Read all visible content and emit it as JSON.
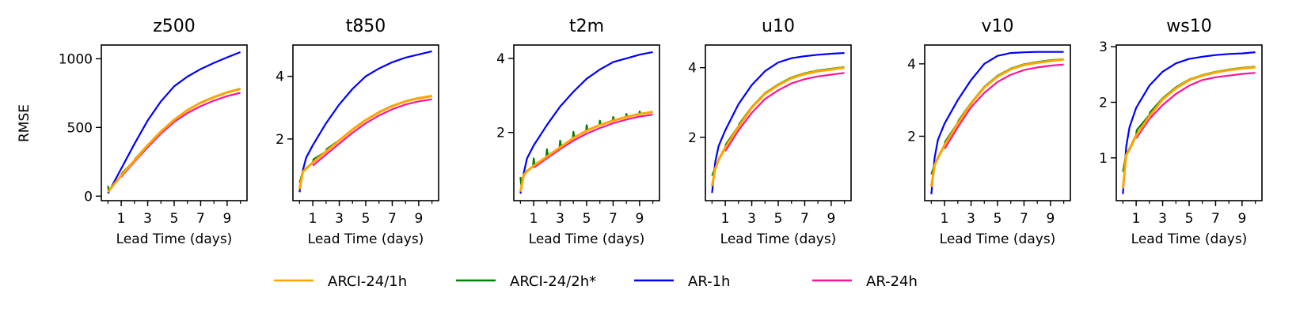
{
  "chart_data": [
    {
      "type": "line",
      "title": "z500",
      "xlabel": "Lead Time (days)",
      "ylabel": "RMSE",
      "xlim": [
        -0.5,
        10.5
      ],
      "ylim": [
        -33,
        1100
      ],
      "xticks": [
        1,
        3,
        5,
        7,
        9
      ],
      "xminor": [
        0,
        1,
        2,
        3,
        4,
        5,
        6,
        7,
        8,
        9,
        10
      ],
      "yticks": [
        0,
        500,
        1000
      ],
      "series": [
        {
          "name": "ARCI-24/1h",
          "x": [
            0,
            0.25,
            0.5,
            1,
            2,
            3,
            4,
            5,
            6,
            7,
            8,
            9,
            10
          ],
          "y": [
            30,
            60,
            90,
            150,
            260,
            370,
            470,
            555,
            625,
            680,
            720,
            755,
            780
          ]
        },
        {
          "name": "ARCI-24/2h*",
          "x": [
            0,
            0.05,
            0.25,
            0.5,
            1,
            1.05,
            2,
            2.05,
            3,
            4,
            5,
            6,
            7,
            8,
            9,
            10
          ],
          "y": [
            75,
            40,
            62,
            92,
            150,
            165,
            260,
            272,
            372,
            472,
            557,
            627,
            682,
            722,
            757,
            782
          ]
        },
        {
          "name": "AR-1h",
          "x": [
            0,
            1,
            2,
            3,
            4,
            5,
            6,
            7,
            8,
            9,
            10
          ],
          "y": [
            20,
            200,
            380,
            550,
            690,
            800,
            870,
            925,
            970,
            1010,
            1048
          ]
        },
        {
          "name": "AR-24h",
          "x": [
            1,
            2,
            3,
            4,
            5,
            6,
            7,
            8,
            9,
            10
          ],
          "y": [
            140,
            250,
            355,
            455,
            540,
            605,
            655,
            695,
            728,
            752
          ]
        }
      ]
    },
    {
      "type": "line",
      "title": "t850",
      "xlabel": "Lead Time (days)",
      "xlim": [
        -0.5,
        10.5
      ],
      "ylim": [
        0.03,
        5.0
      ],
      "xticks": [
        1,
        3,
        5,
        7,
        9
      ],
      "xminor": [
        0,
        1,
        2,
        3,
        4,
        5,
        6,
        7,
        8,
        9,
        10
      ],
      "yticks": [
        2,
        4
      ],
      "series": [
        {
          "name": "ARCI-24/1h",
          "x": [
            0,
            0.25,
            0.5,
            1,
            2,
            3,
            4,
            5,
            6,
            7,
            8,
            9,
            10
          ],
          "y": [
            0.4,
            0.95,
            1.05,
            1.25,
            1.6,
            1.95,
            2.3,
            2.6,
            2.85,
            3.05,
            3.2,
            3.3,
            3.37
          ]
        },
        {
          "name": "ARCI-24/2h*",
          "x": [
            0,
            0.25,
            0.5,
            1,
            1.05,
            2,
            2.05,
            3,
            4,
            5,
            6,
            7,
            8,
            9,
            10
          ],
          "y": [
            0.6,
            0.97,
            1.07,
            1.25,
            1.35,
            1.6,
            1.68,
            1.96,
            2.31,
            2.61,
            2.86,
            3.06,
            3.21,
            3.31,
            3.38
          ]
        },
        {
          "name": "AR-1h",
          "x": [
            0,
            0.25,
            0.5,
            1,
            2,
            3,
            4,
            5,
            6,
            7,
            8,
            9,
            10
          ],
          "y": [
            0.3,
            1.0,
            1.4,
            1.8,
            2.5,
            3.1,
            3.6,
            4.0,
            4.25,
            4.45,
            4.6,
            4.7,
            4.8
          ]
        },
        {
          "name": "AR-24h",
          "x": [
            1,
            2,
            3,
            4,
            5,
            6,
            7,
            8,
            9,
            10
          ],
          "y": [
            1.15,
            1.5,
            1.85,
            2.2,
            2.5,
            2.75,
            2.95,
            3.1,
            3.2,
            3.27
          ]
        }
      ]
    },
    {
      "type": "line",
      "title": "t2m",
      "xlabel": "Lead Time (days)",
      "xlim": [
        -0.5,
        10.5
      ],
      "ylim": [
        0.16,
        4.36
      ],
      "xticks": [
        1,
        3,
        5,
        7,
        9
      ],
      "xminor": [
        0,
        1,
        2,
        3,
        4,
        5,
        6,
        7,
        8,
        9,
        10
      ],
      "yticks": [
        2,
        4
      ],
      "series": [
        {
          "name": "ARCI-24/1h",
          "x": [
            0,
            0.25,
            0.5,
            1,
            2,
            3,
            4,
            5,
            6,
            7,
            8,
            9,
            10
          ],
          "y": [
            0.4,
            0.85,
            0.95,
            1.1,
            1.35,
            1.6,
            1.85,
            2.05,
            2.2,
            2.32,
            2.42,
            2.5,
            2.55
          ]
        },
        {
          "name": "ARCI-24/2h*",
          "x": [
            0,
            0.05,
            0.25,
            0.5,
            0.95,
            1,
            1.08,
            1.95,
            2,
            2.08,
            2.95,
            3,
            3.08,
            3.95,
            4,
            4.08,
            4.95,
            5,
            5.08,
            5.95,
            6,
            6.08,
            6.95,
            7,
            7.08,
            7.95,
            8,
            8.08,
            8.95,
            9,
            9.08,
            10
          ],
          "y": [
            0.8,
            0.6,
            0.87,
            0.97,
            1.08,
            1.3,
            1.12,
            1.33,
            1.55,
            1.37,
            1.58,
            1.78,
            1.62,
            1.83,
            2.02,
            1.87,
            2.03,
            2.2,
            2.06,
            2.19,
            2.32,
            2.21,
            2.31,
            2.42,
            2.33,
            2.41,
            2.5,
            2.43,
            2.49,
            2.57,
            2.51,
            2.56
          ]
        },
        {
          "name": "AR-1h",
          "x": [
            0,
            0.25,
            0.5,
            1,
            2,
            3,
            4,
            5,
            6,
            7,
            8,
            9,
            10
          ],
          "y": [
            0.35,
            0.9,
            1.3,
            1.65,
            2.2,
            2.7,
            3.1,
            3.45,
            3.7,
            3.9,
            4.0,
            4.1,
            4.17
          ]
        },
        {
          "name": "AR-24h",
          "x": [
            1,
            2,
            3,
            4,
            5,
            6,
            7,
            8,
            9,
            10
          ],
          "y": [
            1.05,
            1.3,
            1.55,
            1.78,
            1.97,
            2.12,
            2.25,
            2.35,
            2.43,
            2.48
          ]
        }
      ]
    },
    {
      "type": "line",
      "title": "u10",
      "xlabel": "Lead Time (days)",
      "xlim": [
        -0.5,
        10.5
      ],
      "ylim": [
        0.18,
        4.65
      ],
      "xticks": [
        1,
        3,
        5,
        7,
        9
      ],
      "xminor": [
        0,
        1,
        2,
        3,
        4,
        5,
        6,
        7,
        8,
        9,
        10
      ],
      "yticks": [
        2,
        4
      ],
      "series": [
        {
          "name": "ARCI-24/1h",
          "x": [
            0,
            0.25,
            0.5,
            1,
            2,
            3,
            4,
            5,
            6,
            7,
            8,
            9,
            10
          ],
          "y": [
            0.6,
            1.1,
            1.35,
            1.7,
            2.3,
            2.85,
            3.25,
            3.5,
            3.7,
            3.82,
            3.9,
            3.95,
            4.0
          ]
        },
        {
          "name": "ARCI-24/2h*",
          "x": [
            0,
            0.25,
            0.5,
            1,
            1.05,
            2,
            2.05,
            3,
            4,
            5,
            6,
            7,
            8,
            9,
            10
          ],
          "y": [
            0.9,
            1.12,
            1.37,
            1.72,
            1.8,
            2.32,
            2.38,
            2.87,
            3.27,
            3.52,
            3.72,
            3.84,
            3.92,
            3.97,
            4.02
          ]
        },
        {
          "name": "AR-1h",
          "x": [
            0,
            0.25,
            0.5,
            1,
            2,
            3,
            4,
            5,
            6,
            7,
            8,
            9,
            10
          ],
          "y": [
            0.4,
            1.3,
            1.75,
            2.2,
            2.95,
            3.5,
            3.9,
            4.15,
            4.27,
            4.33,
            4.37,
            4.4,
            4.42
          ]
        },
        {
          "name": "AR-24h",
          "x": [
            1,
            2,
            3,
            4,
            5,
            6,
            7,
            8,
            9,
            10
          ],
          "y": [
            1.6,
            2.2,
            2.7,
            3.1,
            3.35,
            3.55,
            3.67,
            3.75,
            3.8,
            3.85
          ]
        }
      ]
    },
    {
      "type": "line",
      "title": "v10",
      "xlabel": "Lead Time (days)",
      "xlim": [
        -0.5,
        10.5
      ],
      "ylim": [
        0.22,
        4.52
      ],
      "xticks": [
        1,
        3,
        5,
        7,
        9
      ],
      "xminor": [
        0,
        1,
        2,
        3,
        4,
        5,
        6,
        7,
        8,
        9,
        10
      ],
      "yticks": [
        2,
        4
      ],
      "series": [
        {
          "name": "ARCI-24/1h",
          "x": [
            0,
            0.25,
            0.5,
            1,
            2,
            3,
            4,
            5,
            6,
            7,
            8,
            9,
            10
          ],
          "y": [
            0.6,
            1.2,
            1.4,
            1.75,
            2.35,
            2.9,
            3.35,
            3.65,
            3.85,
            3.97,
            4.03,
            4.08,
            4.12
          ]
        },
        {
          "name": "ARCI-24/2h*",
          "x": [
            0,
            0.25,
            0.5,
            1,
            1.05,
            2,
            2.05,
            3,
            4,
            5,
            6,
            7,
            8,
            9,
            10
          ],
          "y": [
            0.95,
            1.22,
            1.42,
            1.77,
            1.85,
            2.37,
            2.43,
            2.92,
            3.37,
            3.67,
            3.87,
            3.99,
            4.05,
            4.1,
            4.13
          ]
        },
        {
          "name": "AR-1h",
          "x": [
            0,
            0.25,
            0.5,
            1,
            2,
            3,
            4,
            5,
            6,
            7,
            8,
            9,
            10
          ],
          "y": [
            0.4,
            1.4,
            1.9,
            2.35,
            3.0,
            3.55,
            4.0,
            4.22,
            4.3,
            4.32,
            4.33,
            4.33,
            4.33
          ]
        },
        {
          "name": "AR-24h",
          "x": [
            1,
            2,
            3,
            4,
            5,
            6,
            7,
            8,
            9,
            10
          ],
          "y": [
            1.65,
            2.25,
            2.8,
            3.2,
            3.5,
            3.7,
            3.83,
            3.9,
            3.95,
            3.98
          ]
        }
      ]
    },
    {
      "type": "line",
      "title": "ws10",
      "xlabel": "Lead Time (days)",
      "xlim": [
        -0.5,
        10.5
      ],
      "ylim": [
        0.23,
        3.03
      ],
      "xticks": [
        1,
        3,
        5,
        7,
        9
      ],
      "xminor": [
        0,
        1,
        2,
        3,
        4,
        5,
        6,
        7,
        8,
        9,
        10
      ],
      "yticks": [
        1,
        2,
        3
      ],
      "series": [
        {
          "name": "ARCI-24/1h",
          "x": [
            0,
            0.25,
            0.5,
            1,
            2,
            3,
            4,
            5,
            6,
            7,
            8,
            9,
            10
          ],
          "y": [
            0.45,
            1.05,
            1.15,
            1.4,
            1.75,
            2.05,
            2.25,
            2.4,
            2.48,
            2.54,
            2.58,
            2.61,
            2.63
          ]
        },
        {
          "name": "ARCI-24/2h*",
          "x": [
            0,
            0.25,
            0.5,
            1,
            1.05,
            2,
            2.05,
            3,
            4,
            5,
            6,
            7,
            8,
            9,
            10
          ],
          "y": [
            0.75,
            1.07,
            1.17,
            1.42,
            1.5,
            1.77,
            1.82,
            2.07,
            2.27,
            2.41,
            2.49,
            2.55,
            2.59,
            2.62,
            2.64
          ]
        },
        {
          "name": "AR-1h",
          "x": [
            0,
            0.25,
            0.5,
            1,
            2,
            3,
            4,
            5,
            6,
            7,
            8,
            9,
            10
          ],
          "y": [
            0.35,
            1.2,
            1.55,
            1.9,
            2.3,
            2.55,
            2.7,
            2.78,
            2.82,
            2.85,
            2.87,
            2.88,
            2.9
          ]
        },
        {
          "name": "AR-24h",
          "x": [
            1,
            2,
            3,
            4,
            5,
            6,
            7,
            8,
            9,
            10
          ],
          "y": [
            1.35,
            1.7,
            1.95,
            2.15,
            2.3,
            2.4,
            2.45,
            2.48,
            2.51,
            2.53
          ]
        }
      ]
    }
  ],
  "legend": {
    "placement": "bottom-center",
    "items": [
      {
        "label": "ARCI-24/1h",
        "color": "#ffa500"
      },
      {
        "label": "ARCI-24/2h*",
        "color": "#008000"
      },
      {
        "label": "AR-1h",
        "color": "#0000ff"
      },
      {
        "label": "AR-24h",
        "color": "#ff1493"
      }
    ]
  }
}
